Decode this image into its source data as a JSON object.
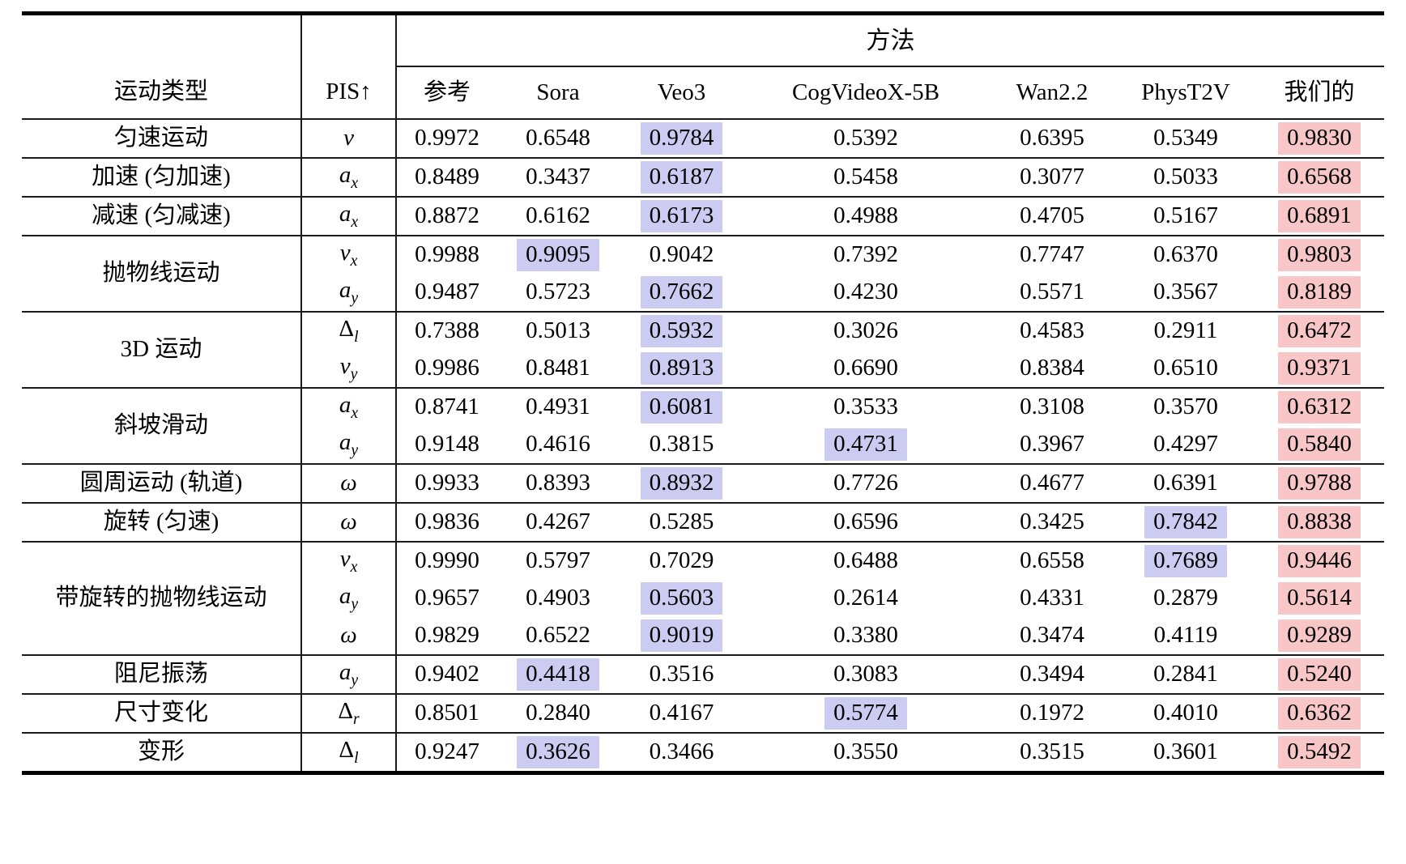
{
  "table": {
    "header": {
      "motion_type_col": "运动类型",
      "pis_col": "PIS↑",
      "methods_group_label": "方法",
      "method_columns": [
        "参考",
        "Sora",
        "Veo3",
        "CogVideoX-5B",
        "Wan2.2",
        "PhysT2V",
        "我们的"
      ]
    },
    "colors": {
      "second_best_bg": "#ccccf2",
      "best_bg": "#f8c6c6",
      "rule_color": "#000000"
    },
    "groups": [
      {
        "motion_type": "匀速运动",
        "rows": [
          {
            "metric": {
              "base": "v",
              "sub": "",
              "upright": false
            },
            "values": [
              "0.9972",
              "0.6548",
              "0.9784",
              "0.5392",
              "0.6395",
              "0.5349",
              "0.9830"
            ],
            "second_best_col": 2,
            "best_col": 6
          }
        ]
      },
      {
        "motion_type": "加速 (匀加速)",
        "rows": [
          {
            "metric": {
              "base": "a",
              "sub": "x",
              "upright": false
            },
            "values": [
              "0.8489",
              "0.3437",
              "0.6187",
              "0.5458",
              "0.3077",
              "0.5033",
              "0.6568"
            ],
            "second_best_col": 2,
            "best_col": 6
          }
        ]
      },
      {
        "motion_type": "减速 (匀减速)",
        "rows": [
          {
            "metric": {
              "base": "a",
              "sub": "x",
              "upright": false
            },
            "values": [
              "0.8872",
              "0.6162",
              "0.6173",
              "0.4988",
              "0.4705",
              "0.5167",
              "0.6891"
            ],
            "second_best_col": 2,
            "best_col": 6
          }
        ]
      },
      {
        "motion_type": "抛物线运动",
        "rows": [
          {
            "metric": {
              "base": "v",
              "sub": "x",
              "upright": false
            },
            "values": [
              "0.9988",
              "0.9095",
              "0.9042",
              "0.7392",
              "0.7747",
              "0.6370",
              "0.9803"
            ],
            "second_best_col": 1,
            "best_col": 6
          },
          {
            "metric": {
              "base": "a",
              "sub": "y",
              "upright": false
            },
            "values": [
              "0.9487",
              "0.5723",
              "0.7662",
              "0.4230",
              "0.5571",
              "0.3567",
              "0.8189"
            ],
            "second_best_col": 2,
            "best_col": 6
          }
        ]
      },
      {
        "motion_type": "3D 运动",
        "rows": [
          {
            "metric": {
              "base": "Δ",
              "sub": "l",
              "upright": true
            },
            "values": [
              "0.7388",
              "0.5013",
              "0.5932",
              "0.3026",
              "0.4583",
              "0.2911",
              "0.6472"
            ],
            "second_best_col": 2,
            "best_col": 6
          },
          {
            "metric": {
              "base": "v",
              "sub": "y",
              "upright": false
            },
            "values": [
              "0.9986",
              "0.8481",
              "0.8913",
              "0.6690",
              "0.8384",
              "0.6510",
              "0.9371"
            ],
            "second_best_col": 2,
            "best_col": 6
          }
        ]
      },
      {
        "motion_type": "斜坡滑动",
        "rows": [
          {
            "metric": {
              "base": "a",
              "sub": "x",
              "upright": false
            },
            "values": [
              "0.8741",
              "0.4931",
              "0.6081",
              "0.3533",
              "0.3108",
              "0.3570",
              "0.6312"
            ],
            "second_best_col": 2,
            "best_col": 6
          },
          {
            "metric": {
              "base": "a",
              "sub": "y",
              "upright": false
            },
            "values": [
              "0.9148",
              "0.4616",
              "0.3815",
              "0.4731",
              "0.3967",
              "0.4297",
              "0.5840"
            ],
            "second_best_col": 3,
            "best_col": 6
          }
        ]
      },
      {
        "motion_type": "圆周运动 (轨道)",
        "rows": [
          {
            "metric": {
              "base": "ω",
              "sub": "",
              "upright": false
            },
            "values": [
              "0.9933",
              "0.8393",
              "0.8932",
              "0.7726",
              "0.4677",
              "0.6391",
              "0.9788"
            ],
            "second_best_col": 2,
            "best_col": 6
          }
        ]
      },
      {
        "motion_type": "旋转 (匀速)",
        "rows": [
          {
            "metric": {
              "base": "ω",
              "sub": "",
              "upright": false
            },
            "values": [
              "0.9836",
              "0.4267",
              "0.5285",
              "0.6596",
              "0.3425",
              "0.7842",
              "0.8838"
            ],
            "second_best_col": 5,
            "best_col": 6
          }
        ]
      },
      {
        "motion_type": "带旋转的抛物线运动",
        "rows": [
          {
            "metric": {
              "base": "v",
              "sub": "x",
              "upright": false
            },
            "values": [
              "0.9990",
              "0.5797",
              "0.7029",
              "0.6488",
              "0.6558",
              "0.7689",
              "0.9446"
            ],
            "second_best_col": 5,
            "best_col": 6
          },
          {
            "metric": {
              "base": "a",
              "sub": "y",
              "upright": false
            },
            "values": [
              "0.9657",
              "0.4903",
              "0.5603",
              "0.2614",
              "0.4331",
              "0.2879",
              "0.5614"
            ],
            "second_best_col": 2,
            "best_col": 6
          },
          {
            "metric": {
              "base": "ω",
              "sub": "",
              "upright": false
            },
            "values": [
              "0.9829",
              "0.6522",
              "0.9019",
              "0.3380",
              "0.3474",
              "0.4119",
              "0.9289"
            ],
            "second_best_col": 2,
            "best_col": 6
          }
        ]
      },
      {
        "motion_type": "阻尼振荡",
        "rows": [
          {
            "metric": {
              "base": "a",
              "sub": "y",
              "upright": false
            },
            "values": [
              "0.9402",
              "0.4418",
              "0.3516",
              "0.3083",
              "0.3494",
              "0.2841",
              "0.5240"
            ],
            "second_best_col": 1,
            "best_col": 6
          }
        ]
      },
      {
        "motion_type": "尺寸变化",
        "rows": [
          {
            "metric": {
              "base": "Δ",
              "sub": "r",
              "upright": true
            },
            "values": [
              "0.8501",
              "0.2840",
              "0.4167",
              "0.5774",
              "0.1972",
              "0.4010",
              "0.6362"
            ],
            "second_best_col": 3,
            "best_col": 6
          }
        ]
      },
      {
        "motion_type": "变形",
        "rows": [
          {
            "metric": {
              "base": "Δ",
              "sub": "l",
              "upright": true
            },
            "values": [
              "0.9247",
              "0.3626",
              "0.3466",
              "0.3550",
              "0.3515",
              "0.3601",
              "0.5492"
            ],
            "second_best_col": 1,
            "best_col": 6
          }
        ]
      }
    ]
  }
}
